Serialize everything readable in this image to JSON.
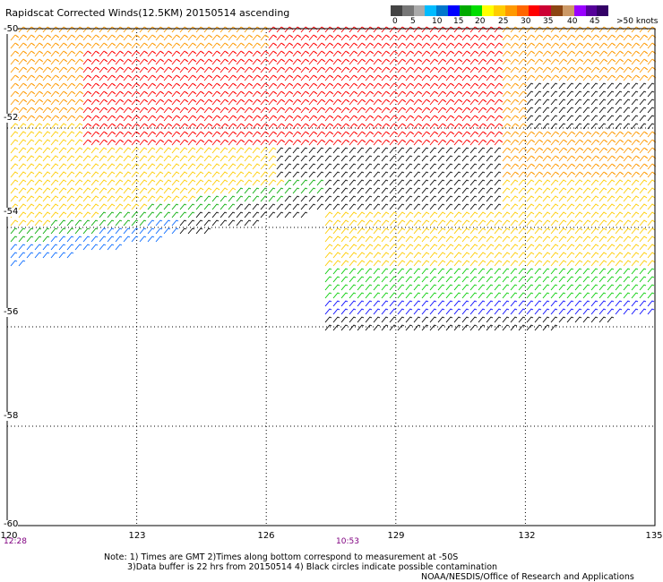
{
  "title": "Rapidscat Corrected Winds(12.5KM) 20150514 ascending",
  "legend": {
    "colors": [
      "#444444",
      "#777777",
      "#aaaaaa",
      "#00bbff",
      "#0077cc",
      "#0000ff",
      "#00aa00",
      "#00dd00",
      "#ffff00",
      "#ffcc00",
      "#ff9900",
      "#ff6600",
      "#ff0000",
      "#cc0033",
      "#8b4513",
      "#cc9966",
      "#9900ff",
      "#550099",
      "#330066"
    ],
    "labels": [
      "0",
      "5",
      "10",
      "15",
      "20",
      "25",
      "30",
      "35",
      "40",
      "45",
      ">50 knots"
    ]
  },
  "axes": {
    "x_ticks": [
      "120",
      "123",
      "126",
      "129",
      "132",
      "135"
    ],
    "y_ticks": [
      "-50",
      "-52",
      "-54",
      "-56",
      "-58",
      "-60"
    ]
  },
  "times": {
    "left": "12:28",
    "middle": "10:53"
  },
  "notes": {
    "line1": "Note: 1) Times are GMT 2)Times along bottom correspond to measurement at -50S",
    "line2": "3)Data buffer is 22 hrs from 20150514 4) Black circles indicate possible contamination",
    "credit": "NOAA/NESDIS/Office of Research and Applications"
  },
  "map": {
    "lon_range": [
      120,
      135
    ],
    "lat_range": [
      -60,
      -50
    ],
    "wind_speed_bands": [
      "0-5",
      "5-10",
      "10-15",
      "15-20",
      "20-25",
      "25-30",
      "30-35",
      "35-40",
      "40-45",
      ">50"
    ]
  }
}
